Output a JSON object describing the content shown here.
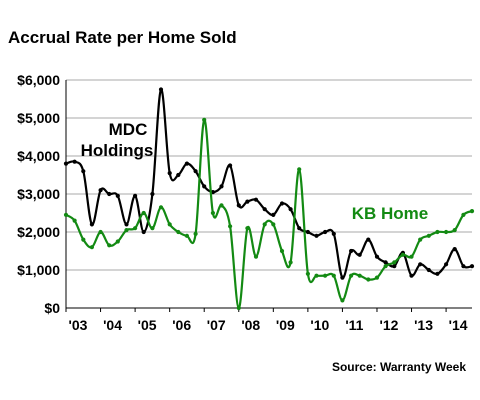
{
  "title": "Accrual Rate per Home Sold",
  "source": "Source: Warranty Week",
  "chart_data": {
    "type": "line",
    "title": "Accrual Rate per Home Sold",
    "xlabel": "",
    "ylabel": "",
    "xlim": [
      2003.0,
      2014.75
    ],
    "ylim": [
      0,
      6000
    ],
    "y_ticks": [
      "$0",
      "$1,000",
      "$2,000",
      "$3,000",
      "$4,000",
      "$5,000",
      "$6,000"
    ],
    "y_tick_values": [
      0,
      1000,
      2000,
      3000,
      4000,
      5000,
      6000
    ],
    "x_ticks": [
      "'03",
      "'04",
      "'05",
      "'06",
      "'07",
      "'08",
      "'09",
      "'10",
      "'11",
      "'12",
      "'13",
      "'14"
    ],
    "x_tick_values": [
      2003,
      2004,
      2005,
      2006,
      2007,
      2008,
      2009,
      2010,
      2011,
      2012,
      2013,
      2014
    ],
    "grid": true,
    "colors": {
      "mdc": "#000000",
      "kb": "#138a13",
      "grid": "#a8a8a8"
    },
    "series": [
      {
        "name": "MDC Holdings",
        "label": [
          "MDC",
          "Holdings"
        ],
        "x": [
          2003.0,
          2003.25,
          2003.5,
          2003.75,
          2004.0,
          2004.25,
          2004.5,
          2004.75,
          2005.0,
          2005.25,
          2005.5,
          2005.75,
          2006.0,
          2006.25,
          2006.5,
          2006.75,
          2007.0,
          2007.25,
          2007.5,
          2007.75,
          2008.0,
          2008.25,
          2008.5,
          2008.75,
          2009.0,
          2009.25,
          2009.5,
          2009.75,
          2010.0,
          2010.25,
          2010.5,
          2010.75,
          2011.0,
          2011.25,
          2011.5,
          2011.75,
          2012.0,
          2012.25,
          2012.5,
          2012.75,
          2013.0,
          2013.25,
          2013.5,
          2013.75,
          2014.0,
          2014.25,
          2014.5,
          2014.75
        ],
        "values": [
          3800,
          3850,
          3600,
          2200,
          3100,
          3000,
          2950,
          2200,
          2950,
          2000,
          3000,
          5750,
          3550,
          3500,
          3800,
          3600,
          3200,
          3050,
          3200,
          3750,
          2700,
          2800,
          2850,
          2600,
          2450,
          2750,
          2600,
          2100,
          2000,
          1900,
          2000,
          1950,
          800,
          1500,
          1400,
          1800,
          1350,
          1200,
          1100,
          1450,
          850,
          1150,
          1000,
          900,
          1150,
          1550,
          1100,
          1100
        ]
      },
      {
        "name": "KB Home",
        "label": [
          "KB Home"
        ],
        "x": [
          2003.0,
          2003.25,
          2003.5,
          2003.75,
          2004.0,
          2004.25,
          2004.5,
          2004.75,
          2005.0,
          2005.25,
          2005.5,
          2005.75,
          2006.0,
          2006.25,
          2006.5,
          2006.75,
          2007.0,
          2007.25,
          2007.5,
          2007.75,
          2008.0,
          2008.25,
          2008.5,
          2008.75,
          2009.0,
          2009.25,
          2009.5,
          2009.75,
          2010.0,
          2010.25,
          2010.5,
          2010.75,
          2011.0,
          2011.25,
          2011.5,
          2011.75,
          2012.0,
          2012.25,
          2012.5,
          2012.75,
          2013.0,
          2013.25,
          2013.5,
          2013.75,
          2014.0,
          2014.25,
          2014.5,
          2014.75
        ],
        "values": [
          2450,
          2300,
          1800,
          1600,
          2000,
          1650,
          1750,
          2050,
          2100,
          2500,
          2100,
          2650,
          2200,
          2000,
          1900,
          1950,
          4950,
          2500,
          2700,
          2150,
          0,
          2100,
          1350,
          2200,
          2200,
          1500,
          1200,
          3650,
          900,
          850,
          850,
          850,
          200,
          850,
          850,
          750,
          800,
          1100,
          1200,
          1400,
          1350,
          1800,
          1900,
          2000,
          2000,
          2050,
          2450,
          2550
        ]
      }
    ]
  }
}
